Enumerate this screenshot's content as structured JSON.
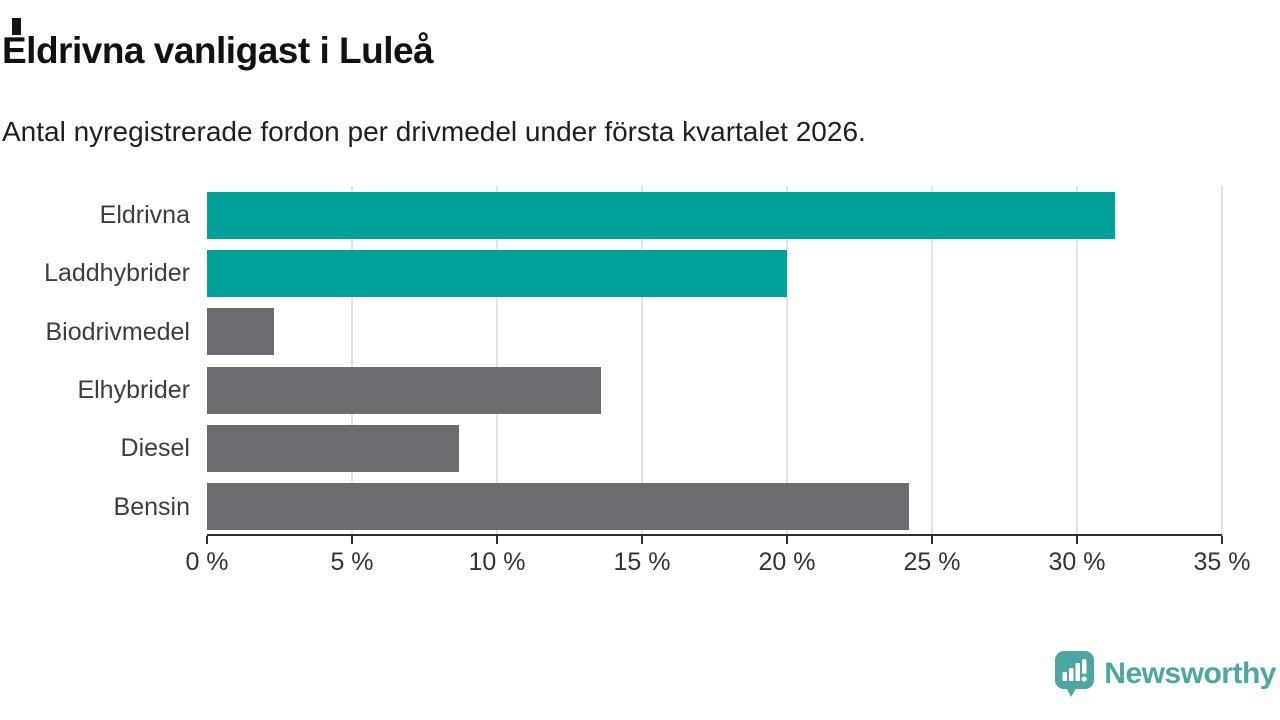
{
  "title": "Eldrivna vanligast i Luleå",
  "subtitle": "Antal nyregistrerade fordon per drivmedel under första kvartalet 2026.",
  "chart_data": {
    "type": "bar",
    "orientation": "horizontal",
    "title": "Eldrivna vanligast i Luleå",
    "subtitle": "Antal nyregistrerade fordon per drivmedel under första kvartalet 2026.",
    "categories": [
      "Eldrivna",
      "Laddhybrider",
      "Biodrivmedel",
      "Elhybrider",
      "Diesel",
      "Bensin"
    ],
    "values": [
      31.3,
      20.0,
      2.3,
      13.6,
      8.7,
      24.2
    ],
    "unit": "%",
    "bar_colors": [
      "#00a199",
      "#00a199",
      "#6b6b70",
      "#6b6b70",
      "#6b6b70",
      "#6b6b70"
    ],
    "highlight_color": "#00a199",
    "default_color": "#6b6b70",
    "xlim": [
      0,
      35
    ],
    "x_ticks": [
      0,
      5,
      10,
      15,
      20,
      25,
      30,
      35
    ],
    "x_tick_labels": [
      "0 %",
      "5 %",
      "10 %",
      "15 %",
      "20 %",
      "25 %",
      "30 %",
      "35 %"
    ],
    "grid": true,
    "legend": false,
    "xlabel": "",
    "ylabel": ""
  },
  "footer": {
    "brand": "Newsworthy",
    "logo_icon": "newsworthy-speech-bubble-bar-chart-icon"
  },
  "colors": {
    "accent_teal": "#00a199",
    "bar_gray": "#6b6b70",
    "gridline": "#e3e3e3",
    "axis": "#2f2f2f",
    "brand_teal": "#4ba7a0",
    "title_text": "#111111",
    "label_text": "#3d3d3d"
  }
}
